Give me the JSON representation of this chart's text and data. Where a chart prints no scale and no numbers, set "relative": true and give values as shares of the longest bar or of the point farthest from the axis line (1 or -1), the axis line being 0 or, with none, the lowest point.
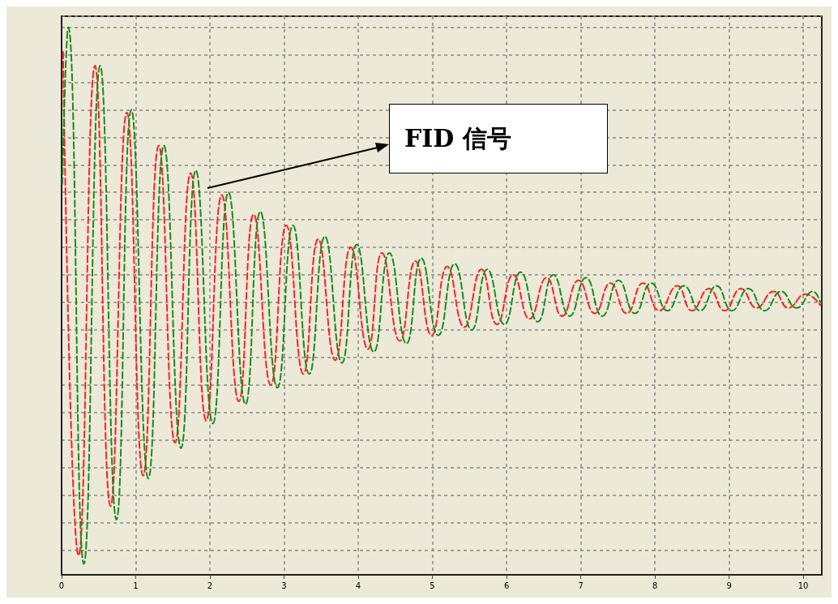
{
  "chart_data": {
    "type": "line",
    "relative": true,
    "xlim": [
      0,
      10.25
    ],
    "xticks": [
      0,
      1,
      2,
      3,
      4,
      5,
      6,
      7,
      8,
      9,
      10
    ],
    "tick_labels": "x",
    "grid": true,
    "marker": "none",
    "line_style": "dashed",
    "annotations": [
      "FID 信号"
    ],
    "series": [
      {
        "color": "#ff2020",
        "x": [
          0.02,
          0.23,
          0.45,
          0.66,
          0.88,
          1.1,
          1.31,
          1.53,
          1.74,
          1.95,
          2.16,
          2.39,
          2.59,
          2.82,
          3.03,
          3.26,
          3.46,
          3.69,
          3.9,
          4.13,
          4.32,
          4.56,
          4.77,
          4.99,
          5.2,
          5.43,
          5.66,
          5.87,
          6.09,
          6.31,
          6.54,
          6.75,
          6.97,
          7.19,
          7.4,
          7.62,
          7.84,
          8.06,
          8.3,
          8.5,
          8.73,
          8.94,
          9.16,
          9.37,
          9.6,
          9.8,
          10.03,
          10.23
        ],
        "values": [
          0.91,
          -0.92,
          0.86,
          -0.74,
          0.69,
          -0.63,
          0.57,
          -0.51,
          0.47,
          -0.43,
          0.39,
          -0.36,
          0.32,
          -0.3,
          0.28,
          -0.26,
          0.23,
          -0.21,
          0.2,
          -0.17,
          0.18,
          -0.14,
          0.15,
          -0.12,
          0.13,
          -0.09,
          0.12,
          -0.08,
          0.1,
          -0.06,
          0.09,
          -0.05,
          0.08,
          -0.04,
          0.07,
          -0.04,
          0.07,
          -0.03,
          0.06,
          -0.03,
          0.05,
          -0.03,
          0.05,
          -0.02,
          0.04,
          -0.02,
          0.03,
          -0.01
        ]
      },
      {
        "color": "#1a8c1a",
        "x": [
          0.01,
          0.09,
          0.3,
          0.52,
          0.74,
          0.94,
          1.17,
          1.38,
          1.61,
          1.81,
          2.04,
          2.25,
          2.48,
          2.68,
          2.91,
          3.12,
          3.34,
          3.55,
          3.78,
          3.98,
          4.21,
          4.42,
          4.65,
          4.85,
          5.08,
          5.3,
          5.53,
          5.74,
          5.97,
          6.19,
          6.42,
          6.63,
          6.85,
          7.07,
          7.29,
          7.51,
          7.73,
          7.95,
          8.17,
          8.39,
          8.61,
          8.83,
          9.04,
          9.26,
          9.48,
          9.7,
          9.91,
          10.13,
          10.23
        ],
        "values": [
          0.43,
          1.0,
          -0.95,
          0.86,
          -0.79,
          0.7,
          -0.64,
          0.57,
          -0.53,
          0.48,
          -0.44,
          0.4,
          -0.37,
          0.33,
          -0.31,
          0.28,
          -0.26,
          0.24,
          -0.22,
          0.21,
          -0.18,
          0.18,
          -0.15,
          0.16,
          -0.12,
          0.14,
          -0.1,
          0.12,
          -0.08,
          0.11,
          -0.07,
          0.1,
          -0.05,
          0.09,
          -0.05,
          0.08,
          -0.04,
          0.07,
          -0.03,
          0.06,
          -0.03,
          0.06,
          -0.03,
          0.05,
          -0.03,
          0.04,
          -0.02,
          0.04,
          0.0
        ]
      }
    ]
  }
}
